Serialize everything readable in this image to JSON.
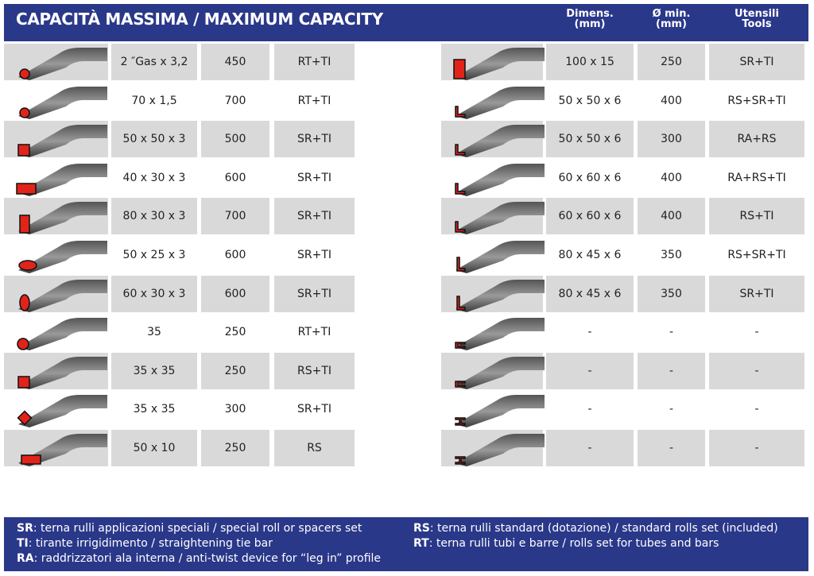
{
  "header": {
    "title": "CAPACITÀ MASSIMA / MAXIMUM CAPACITY",
    "columns": [
      [
        "Dimens.",
        "(mm)"
      ],
      [
        "Ø min.",
        "(mm)"
      ],
      [
        "Utensili",
        "Tools"
      ]
    ]
  },
  "left_table": {
    "rows": [
      [
        "2 ″Gas x 3,2",
        "450",
        "RT+TI"
      ],
      [
        "70 x 1,5",
        "700",
        "RT+TI"
      ],
      [
        "50 x 50 x 3",
        "500",
        "SR+TI"
      ],
      [
        "40 x 30 x 3",
        "600",
        "SR+TI"
      ],
      [
        "80 x 30 x 3",
        "700",
        "SR+TI"
      ],
      [
        "50 x 25 x 3",
        "600",
        "SR+TI"
      ],
      [
        "60 x 30 x 3",
        "600",
        "SR+TI"
      ],
      [
        "35",
        "250",
        "RT+TI"
      ],
      [
        "35 x 35",
        "250",
        "RS+TI"
      ],
      [
        "35 x 35",
        "300",
        "SR+TI"
      ],
      [
        "50 x 10",
        "250",
        "RS"
      ]
    ]
  },
  "right_table": {
    "rows": [
      [
        "100 x 15",
        "250",
        "SR+TI"
      ],
      [
        "50 x 50 x 6",
        "400",
        "RS+SR+TI"
      ],
      [
        "50 x 50 x 6",
        "300",
        "RA+RS"
      ],
      [
        "60 x 60 x 6",
        "400",
        "RA+RS+TI"
      ],
      [
        "60 x 60 x 6",
        "400",
        "RS+TI"
      ],
      [
        "80 x 45 x 6",
        "350",
        "RS+SR+TI"
      ],
      [
        "80 x 45 x 6",
        "350",
        "SR+TI"
      ],
      [
        "-",
        "-",
        "-"
      ],
      [
        "-",
        "-",
        "-"
      ],
      [
        "-",
        "-",
        "-"
      ],
      [
        "-",
        "-",
        "-"
      ]
    ]
  },
  "legend": {
    "left": [
      {
        "key": "SR",
        "text": ": terna rulli applicazioni speciali / special roll or spacers set"
      },
      {
        "key": "TI",
        "text": ": tirante irrigidimento / straightening tie bar"
      },
      {
        "key": "RA",
        "text": ": raddrizzatori ala interna / anti-twist device for “leg in” profile"
      }
    ],
    "right": [
      {
        "key": "RS",
        "text": ": terna rulli standard (dotazione) / standard rolls set (included)"
      },
      {
        "key": "RT",
        "text": ": terna rulli tubi e barre / rolls set for tubes and bars"
      }
    ]
  }
}
